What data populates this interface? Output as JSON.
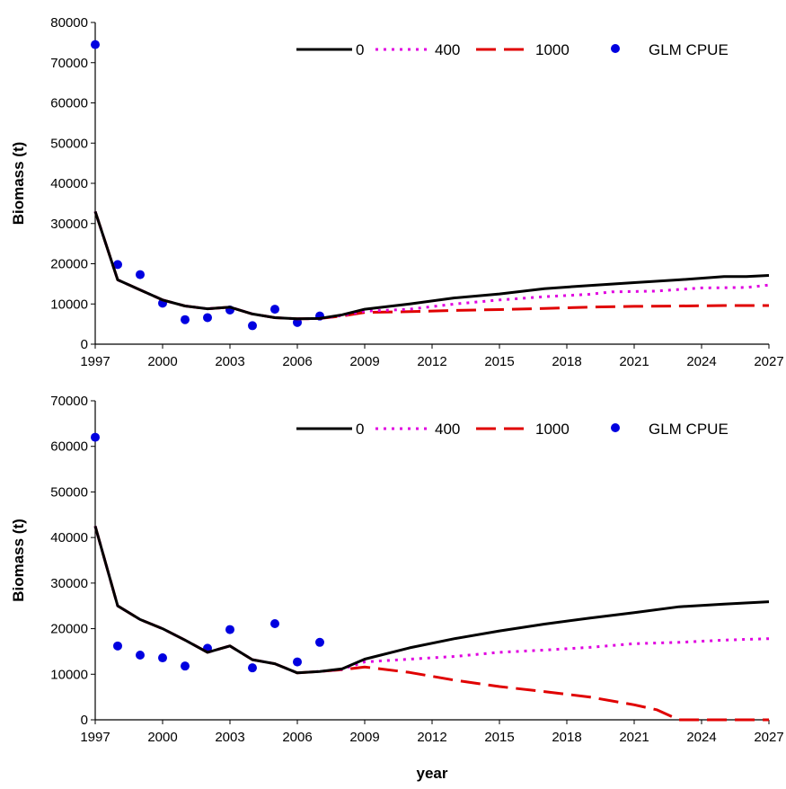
{
  "chart_data": [
    {
      "type": "line",
      "ylabel": "Biomass (t)",
      "xlabel": "",
      "xlim": [
        1997,
        2027
      ],
      "ylim": [
        0,
        80000
      ],
      "x_ticks": [
        "1997",
        "2000",
        "2003",
        "2006",
        "2009",
        "2012",
        "2015",
        "2018",
        "2021",
        "2024",
        "2027"
      ],
      "y_ticks": [
        "0",
        "10000",
        "20000",
        "30000",
        "40000",
        "50000",
        "60000",
        "70000",
        "80000"
      ],
      "legend_position": "top-right",
      "series": [
        {
          "name": "0",
          "style": "solid",
          "color": "#000000",
          "points": [
            [
              1997,
              33000
            ],
            [
              1998,
              16000
            ],
            [
              1999,
              13500
            ],
            [
              2000,
              11000
            ],
            [
              2001,
              9500
            ],
            [
              2002,
              8800
            ],
            [
              2003,
              9200
            ],
            [
              2004,
              7500
            ],
            [
              2005,
              6600
            ],
            [
              2006,
              6300
            ],
            [
              2007,
              6400
            ],
            [
              2008,
              7300
            ],
            [
              2009,
              8700
            ],
            [
              2011,
              10000
            ],
            [
              2013,
              11500
            ],
            [
              2015,
              12500
            ],
            [
              2017,
              13800
            ],
            [
              2019,
              14600
            ],
            [
              2021,
              15300
            ],
            [
              2023,
              16000
            ],
            [
              2025,
              16800
            ],
            [
              2026,
              16800
            ],
            [
              2027,
              17100
            ]
          ]
        },
        {
          "name": "400",
          "style": "dotted",
          "color": "#e000e0",
          "points": [
            [
              1997,
              33000
            ],
            [
              1998,
              16000
            ],
            [
              1999,
              13500
            ],
            [
              2000,
              11000
            ],
            [
              2001,
              9500
            ],
            [
              2002,
              8800
            ],
            [
              2003,
              9200
            ],
            [
              2004,
              7500
            ],
            [
              2005,
              6600
            ],
            [
              2006,
              6300
            ],
            [
              2007,
              6400
            ],
            [
              2008,
              7100
            ],
            [
              2009,
              8200
            ],
            [
              2011,
              8700
            ],
            [
              2013,
              10000
            ],
            [
              2015,
              11000
            ],
            [
              2017,
              11800
            ],
            [
              2019,
              12400
            ],
            [
              2020,
              13000
            ],
            [
              2022,
              13200
            ],
            [
              2024,
              14000
            ],
            [
              2026,
              14100
            ],
            [
              2027,
              14700
            ]
          ]
        },
        {
          "name": "1000",
          "style": "dashed",
          "color": "#e00000",
          "points": [
            [
              1997,
              33000
            ],
            [
              1998,
              16000
            ],
            [
              1999,
              13500
            ],
            [
              2000,
              11000
            ],
            [
              2001,
              9500
            ],
            [
              2002,
              8800
            ],
            [
              2003,
              9200
            ],
            [
              2004,
              7500
            ],
            [
              2005,
              6600
            ],
            [
              2006,
              6300
            ],
            [
              2007,
              6400
            ],
            [
              2008,
              7000
            ],
            [
              2009,
              7900
            ],
            [
              2011,
              8100
            ],
            [
              2013,
              8400
            ],
            [
              2015,
              8600
            ],
            [
              2017,
              8900
            ],
            [
              2019,
              9200
            ],
            [
              2021,
              9400
            ],
            [
              2023,
              9500
            ],
            [
              2025,
              9600
            ],
            [
              2027,
              9600
            ]
          ]
        },
        {
          "name": "GLM CPUE",
          "style": "points",
          "color": "#0000e0",
          "points": [
            [
              1997,
              74500
            ],
            [
              1998,
              19800
            ],
            [
              1999,
              17300
            ],
            [
              2000,
              10200
            ],
            [
              2001,
              6100
            ],
            [
              2002,
              6600
            ],
            [
              2003,
              8500
            ],
            [
              2004,
              4600
            ],
            [
              2005,
              8700
            ],
            [
              2006,
              5400
            ],
            [
              2007,
              7000
            ]
          ]
        }
      ]
    },
    {
      "type": "line",
      "ylabel": "Biomass (t)",
      "xlabel": "year",
      "xlim": [
        1997,
        2027
      ],
      "ylim": [
        0,
        70000
      ],
      "x_ticks": [
        "1997",
        "2000",
        "2003",
        "2006",
        "2009",
        "2012",
        "2015",
        "2018",
        "2021",
        "2024",
        "2027"
      ],
      "y_ticks": [
        "0",
        "10000",
        "20000",
        "30000",
        "40000",
        "50000",
        "60000",
        "70000"
      ],
      "legend_position": "top-right",
      "series": [
        {
          "name": "0",
          "style": "solid",
          "color": "#000000",
          "points": [
            [
              1997,
              42500
            ],
            [
              1998,
              25000
            ],
            [
              1999,
              22000
            ],
            [
              2000,
              20000
            ],
            [
              2001,
              17500
            ],
            [
              2002,
              14800
            ],
            [
              2003,
              16200
            ],
            [
              2004,
              13200
            ],
            [
              2005,
              12300
            ],
            [
              2006,
              10300
            ],
            [
              2007,
              10600
            ],
            [
              2008,
              11200
            ],
            [
              2009,
              13300
            ],
            [
              2011,
              15800
            ],
            [
              2013,
              17800
            ],
            [
              2015,
              19500
            ],
            [
              2017,
              21000
            ],
            [
              2019,
              22300
            ],
            [
              2021,
              23500
            ],
            [
              2023,
              24800
            ],
            [
              2025,
              25400
            ],
            [
              2027,
              25900
            ]
          ]
        },
        {
          "name": "400",
          "style": "dotted",
          "color": "#e000e0",
          "points": [
            [
              1997,
              42500
            ],
            [
              1998,
              25000
            ],
            [
              1999,
              22000
            ],
            [
              2000,
              20000
            ],
            [
              2001,
              17500
            ],
            [
              2002,
              14800
            ],
            [
              2003,
              16200
            ],
            [
              2004,
              13200
            ],
            [
              2005,
              12300
            ],
            [
              2006,
              10300
            ],
            [
              2007,
              10600
            ],
            [
              2008,
              11100
            ],
            [
              2009,
              12700
            ],
            [
              2011,
              13300
            ],
            [
              2013,
              13900
            ],
            [
              2015,
              14800
            ],
            [
              2017,
              15300
            ],
            [
              2019,
              15900
            ],
            [
              2021,
              16700
            ],
            [
              2023,
              17000
            ],
            [
              2025,
              17500
            ],
            [
              2027,
              17800
            ]
          ]
        },
        {
          "name": "1000",
          "style": "dashed",
          "color": "#e00000",
          "points": [
            [
              1997,
              42500
            ],
            [
              1998,
              25000
            ],
            [
              1999,
              22000
            ],
            [
              2000,
              20000
            ],
            [
              2001,
              17500
            ],
            [
              2002,
              14800
            ],
            [
              2003,
              16200
            ],
            [
              2004,
              13200
            ],
            [
              2005,
              12300
            ],
            [
              2006,
              10300
            ],
            [
              2007,
              10600
            ],
            [
              2008,
              11000
            ],
            [
              2009,
              11600
            ],
            [
              2011,
              10400
            ],
            [
              2013,
              8700
            ],
            [
              2015,
              7300
            ],
            [
              2017,
              6200
            ],
            [
              2019,
              5000
            ],
            [
              2021,
              3300
            ],
            [
              2022,
              2200
            ],
            [
              2023,
              0
            ],
            [
              2025,
              0
            ],
            [
              2027,
              0
            ]
          ]
        },
        {
          "name": "GLM CPUE",
          "style": "points",
          "color": "#0000e0",
          "points": [
            [
              1997,
              62000
            ],
            [
              1998,
              16200
            ],
            [
              1999,
              14200
            ],
            [
              2000,
              13600
            ],
            [
              2001,
              11800
            ],
            [
              2002,
              15700
            ],
            [
              2003,
              19800
            ],
            [
              2004,
              11400
            ],
            [
              2005,
              21100
            ],
            [
              2006,
              12700
            ],
            [
              2007,
              17000
            ]
          ]
        }
      ]
    }
  ]
}
